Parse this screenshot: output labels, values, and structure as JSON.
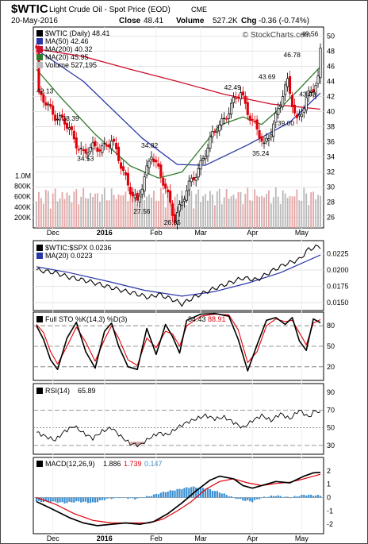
{
  "header": {
    "symbol": "$WTIC",
    "description": "Light Crude Oil - Spot Price (EOD)",
    "exchange": "CME",
    "date": "20-May-2016",
    "close_label": "Close",
    "close": "48.41",
    "volume_label": "Volume",
    "volume": "527.2K",
    "chg_label": "Chg",
    "chg": "-0.36 (-0.74%)",
    "watermark": "© StockCharts.com"
  },
  "x_axis_labels": [
    "Dec",
    "2016",
    "Feb",
    "Mar",
    "Apr",
    "May"
  ],
  "colors": {
    "up": "#000000",
    "down": "#e0000a",
    "ma50": "#2a35a8",
    "ma200": "#cc0f2a",
    "ma20": "#2f7a2a",
    "volume_up": "#b9b9b9",
    "volume_down": "#e5a7a7",
    "pct_k": "#000000",
    "pct_d": "#e0000a",
    "macd_line": "#000000",
    "signal_line": "#e0000a",
    "histogram": "#3b8fd1"
  },
  "chart_data": [
    {
      "panel": "price",
      "type": "candlestick",
      "legend": {
        "price": "$WTIC (Daily) 48.41",
        "ma50": "MA(50) 42.46",
        "ma200": "MA(200) 40.32",
        "ma20": "MA(20) 45.95",
        "volume": "Volume 527,195"
      },
      "y_ticks": [
        26,
        28,
        30,
        32,
        34,
        36,
        38,
        40,
        42,
        44,
        46,
        48,
        50
      ],
      "ylim": [
        24.6,
        51.2
      ],
      "volume_ticks": [
        "200K",
        "400K",
        "600K",
        "800K",
        "1.0M"
      ],
      "volume_ylim": [
        0,
        1100000
      ],
      "annotations": [
        {
          "text": "42.13",
          "price": 42.13
        },
        {
          "text": "38.39",
          "price": 38.39
        },
        {
          "text": "34.53",
          "price": 34.53
        },
        {
          "text": "34.82",
          "price": 34.82
        },
        {
          "text": "27.56",
          "price": 27.56
        },
        {
          "text": "26.05",
          "price": 26.05
        },
        {
          "text": "42.49",
          "price": 42.49
        },
        {
          "text": "35.24",
          "price": 35.24
        },
        {
          "text": "39.00",
          "price": 39.0
        },
        {
          "text": "43.69",
          "price": 43.69
        },
        {
          "text": "43.03",
          "price": 43.03
        },
        {
          "text": "46.78",
          "price": 46.78
        },
        {
          "text": "49.56",
          "price": 49.56
        }
      ],
      "key_points": [
        {
          "date": "2015-11-23",
          "close": 42.0
        },
        {
          "date": "2015-12-08",
          "close": 38.39
        },
        {
          "date": "2015-12-18",
          "close": 34.53
        },
        {
          "date": "2016-01-05",
          "close": 35.97
        },
        {
          "date": "2016-01-20",
          "close": 27.56
        },
        {
          "date": "2016-01-28",
          "close": 34.82
        },
        {
          "date": "2016-02-11",
          "close": 26.05
        },
        {
          "date": "2016-03-08",
          "close": 37.9
        },
        {
          "date": "2016-03-22",
          "close": 42.49
        },
        {
          "date": "2016-04-05",
          "close": 35.24
        },
        {
          "date": "2016-04-19",
          "close": 43.69
        },
        {
          "date": "2016-04-25",
          "close": 39.0
        },
        {
          "date": "2016-05-04",
          "close": 43.03
        },
        {
          "date": "2016-05-11",
          "close": 46.78
        },
        {
          "date": "2016-05-18",
          "close": 49.56
        },
        {
          "date": "2016-05-20",
          "close": 48.41
        }
      ],
      "ma50": [
        [
          0,
          48.2
        ],
        [
          20,
          44.0
        ],
        [
          45,
          36.5
        ],
        [
          60,
          33.0
        ],
        [
          72,
          32.9
        ],
        [
          90,
          35.6
        ],
        [
          108,
          38.6
        ],
        [
          121,
          42.46
        ]
      ],
      "ma200": [
        [
          0,
          48.3
        ],
        [
          20,
          47.3
        ],
        [
          40,
          45.6
        ],
        [
          60,
          44.0
        ],
        [
          80,
          42.3
        ],
        [
          100,
          41.0
        ],
        [
          121,
          40.32
        ]
      ],
      "ma20": [
        [
          0,
          45.6
        ],
        [
          10,
          42.0
        ],
        [
          25,
          37.0
        ],
        [
          40,
          32.8
        ],
        [
          52,
          31.2
        ],
        [
          62,
          32.0
        ],
        [
          78,
          38.2
        ],
        [
          88,
          39.3
        ],
        [
          96,
          38.3
        ],
        [
          104,
          40.5
        ],
        [
          112,
          43.0
        ],
        [
          121,
          45.95
        ]
      ]
    },
    {
      "panel": "ratio",
      "type": "line",
      "legend": {
        "ratio": "$WTIC:$SPX 0.0236",
        "ma20": "MA(20) 0.0223"
      },
      "y_ticks": [
        "0.0150",
        "0.0175",
        "0.0200",
        "0.0225"
      ],
      "ylim": [
        0.0138,
        0.0245
      ],
      "series": [
        [
          0,
          0.02
        ],
        [
          8,
          0.0196
        ],
        [
          14,
          0.0189
        ],
        [
          22,
          0.0183
        ],
        [
          26,
          0.0179
        ],
        [
          34,
          0.0171
        ],
        [
          42,
          0.0164
        ],
        [
          48,
          0.0158
        ],
        [
          52,
          0.0163
        ],
        [
          58,
          0.0155
        ],
        [
          62,
          0.0148
        ],
        [
          68,
          0.016
        ],
        [
          76,
          0.0172
        ],
        [
          82,
          0.018
        ],
        [
          88,
          0.0188
        ],
        [
          94,
          0.0185
        ],
        [
          100,
          0.0198
        ],
        [
          106,
          0.0209
        ],
        [
          112,
          0.0216
        ],
        [
          116,
          0.0232
        ],
        [
          120,
          0.0236
        ]
      ],
      "ma20": [
        [
          0,
          0.0205
        ],
        [
          14,
          0.0196
        ],
        [
          30,
          0.0183
        ],
        [
          46,
          0.0169
        ],
        [
          62,
          0.016
        ],
        [
          76,
          0.0167
        ],
        [
          90,
          0.018
        ],
        [
          104,
          0.0196
        ],
        [
          121,
          0.0223
        ]
      ]
    },
    {
      "panel": "stochastic",
      "type": "line",
      "legend": {
        "title": "Full STO %K(14,3) %D(3)",
        "k": "84.43",
        "d": "88.91"
      },
      "y_ticks": [
        20,
        50,
        80
      ],
      "reference_lines": [
        20,
        50,
        80
      ],
      "ylim": [
        0,
        100
      ],
      "k": [
        [
          0,
          80
        ],
        [
          3,
          60
        ],
        [
          6,
          30
        ],
        [
          9,
          16
        ],
        [
          13,
          62
        ],
        [
          17,
          85
        ],
        [
          21,
          42
        ],
        [
          25,
          18
        ],
        [
          29,
          72
        ],
        [
          32,
          84
        ],
        [
          35,
          50
        ],
        [
          39,
          20
        ],
        [
          43,
          16
        ],
        [
          47,
          76
        ],
        [
          51,
          38
        ],
        [
          55,
          82
        ],
        [
          58,
          64
        ],
        [
          61,
          40
        ],
        [
          64,
          88
        ],
        [
          70,
          97
        ],
        [
          76,
          98
        ],
        [
          82,
          94
        ],
        [
          86,
          60
        ],
        [
          90,
          14
        ],
        [
          94,
          52
        ],
        [
          98,
          88
        ],
        [
          102,
          92
        ],
        [
          106,
          82
        ],
        [
          109,
          92
        ],
        [
          112,
          58
        ],
        [
          115,
          44
        ],
        [
          118,
          90
        ],
        [
          121,
          84.43
        ]
      ],
      "d": [
        [
          0,
          82
        ],
        [
          3,
          70
        ],
        [
          6,
          42
        ],
        [
          9,
          24
        ],
        [
          13,
          50
        ],
        [
          17,
          78
        ],
        [
          21,
          56
        ],
        [
          25,
          28
        ],
        [
          29,
          60
        ],
        [
          32,
          80
        ],
        [
          35,
          62
        ],
        [
          39,
          30
        ],
        [
          43,
          22
        ],
        [
          47,
          62
        ],
        [
          51,
          48
        ],
        [
          55,
          72
        ],
        [
          58,
          68
        ],
        [
          61,
          50
        ],
        [
          64,
          80
        ],
        [
          70,
          94
        ],
        [
          76,
          97
        ],
        [
          82,
          96
        ],
        [
          86,
          74
        ],
        [
          90,
          26
        ],
        [
          94,
          42
        ],
        [
          98,
          80
        ],
        [
          102,
          90
        ],
        [
          106,
          86
        ],
        [
          109,
          88
        ],
        [
          112,
          70
        ],
        [
          115,
          52
        ],
        [
          118,
          84
        ],
        [
          121,
          88.91
        ]
      ]
    },
    {
      "panel": "rsi",
      "type": "line",
      "legend": {
        "title": "RSI(14)",
        "value": "65.89"
      },
      "y_ticks": [
        30,
        50,
        70,
        90
      ],
      "reference_lines": [
        30,
        70
      ],
      "ylim": [
        20,
        100
      ],
      "series": [
        [
          0,
          45
        ],
        [
          4,
          40
        ],
        [
          8,
          36
        ],
        [
          12,
          46
        ],
        [
          16,
          52
        ],
        [
          20,
          44
        ],
        [
          24,
          38
        ],
        [
          28,
          46
        ],
        [
          32,
          50
        ],
        [
          36,
          40
        ],
        [
          40,
          32
        ],
        [
          44,
          30
        ],
        [
          48,
          38
        ],
        [
          52,
          44
        ],
        [
          56,
          42
        ],
        [
          60,
          50
        ],
        [
          64,
          56
        ],
        [
          68,
          60
        ],
        [
          72,
          64
        ],
        [
          76,
          60
        ],
        [
          80,
          62
        ],
        [
          84,
          56
        ],
        [
          88,
          50
        ],
        [
          92,
          58
        ],
        [
          96,
          64
        ],
        [
          100,
          58
        ],
        [
          104,
          66
        ],
        [
          108,
          60
        ],
        [
          112,
          70
        ],
        [
          116,
          62
        ],
        [
          119,
          70
        ],
        [
          121,
          65.89
        ]
      ]
    },
    {
      "panel": "macd",
      "type": "line",
      "legend": {
        "title": "MACD(12,26,9)",
        "macd": "1.886",
        "signal": "1.739",
        "histogram": "0.147"
      },
      "y_ticks": [
        -2,
        -1,
        0,
        1,
        2
      ],
      "ylim": [
        -2.7,
        3.0
      ],
      "macd": [
        [
          0,
          -0.3
        ],
        [
          6,
          -0.8
        ],
        [
          14,
          -1.5
        ],
        [
          20,
          -1.9
        ],
        [
          26,
          -2.1
        ],
        [
          32,
          -2.0
        ],
        [
          38,
          -1.9
        ],
        [
          44,
          -2.0
        ],
        [
          50,
          -1.8
        ],
        [
          56,
          -1.2
        ],
        [
          62,
          -0.4
        ],
        [
          68,
          0.5
        ],
        [
          74,
          1.3
        ],
        [
          78,
          1.6
        ],
        [
          84,
          1.4
        ],
        [
          88,
          0.9
        ],
        [
          92,
          0.7
        ],
        [
          96,
          0.9
        ],
        [
          102,
          1.2
        ],
        [
          108,
          1.1
        ],
        [
          114,
          1.6
        ],
        [
          118,
          1.85
        ],
        [
          121,
          1.886
        ]
      ],
      "signal": [
        [
          0,
          0.0
        ],
        [
          8,
          -0.5
        ],
        [
          16,
          -1.2
        ],
        [
          24,
          -1.7
        ],
        [
          32,
          -1.9
        ],
        [
          40,
          -1.9
        ],
        [
          48,
          -1.9
        ],
        [
          54,
          -1.6
        ],
        [
          60,
          -1.0
        ],
        [
          66,
          -0.3
        ],
        [
          72,
          0.6
        ],
        [
          78,
          1.2
        ],
        [
          84,
          1.4
        ],
        [
          90,
          1.1
        ],
        [
          96,
          0.9
        ],
        [
          102,
          1.05
        ],
        [
          108,
          1.15
        ],
        [
          114,
          1.4
        ],
        [
          121,
          1.739
        ]
      ],
      "histogram": [
        [
          0,
          -0.3
        ],
        [
          6,
          -0.3
        ],
        [
          12,
          -0.4
        ],
        [
          18,
          -0.3
        ],
        [
          24,
          -0.4
        ],
        [
          30,
          -0.1
        ],
        [
          36,
          0.0
        ],
        [
          42,
          -0.1
        ],
        [
          48,
          0.1
        ],
        [
          54,
          0.4
        ],
        [
          60,
          0.6
        ],
        [
          66,
          0.8
        ],
        [
          72,
          0.7
        ],
        [
          78,
          0.4
        ],
        [
          84,
          0.0
        ],
        [
          88,
          -0.2
        ],
        [
          92,
          -0.3
        ],
        [
          96,
          0.0
        ],
        [
          102,
          0.15
        ],
        [
          108,
          0.0
        ],
        [
          114,
          0.2
        ],
        [
          121,
          0.147
        ]
      ]
    }
  ]
}
